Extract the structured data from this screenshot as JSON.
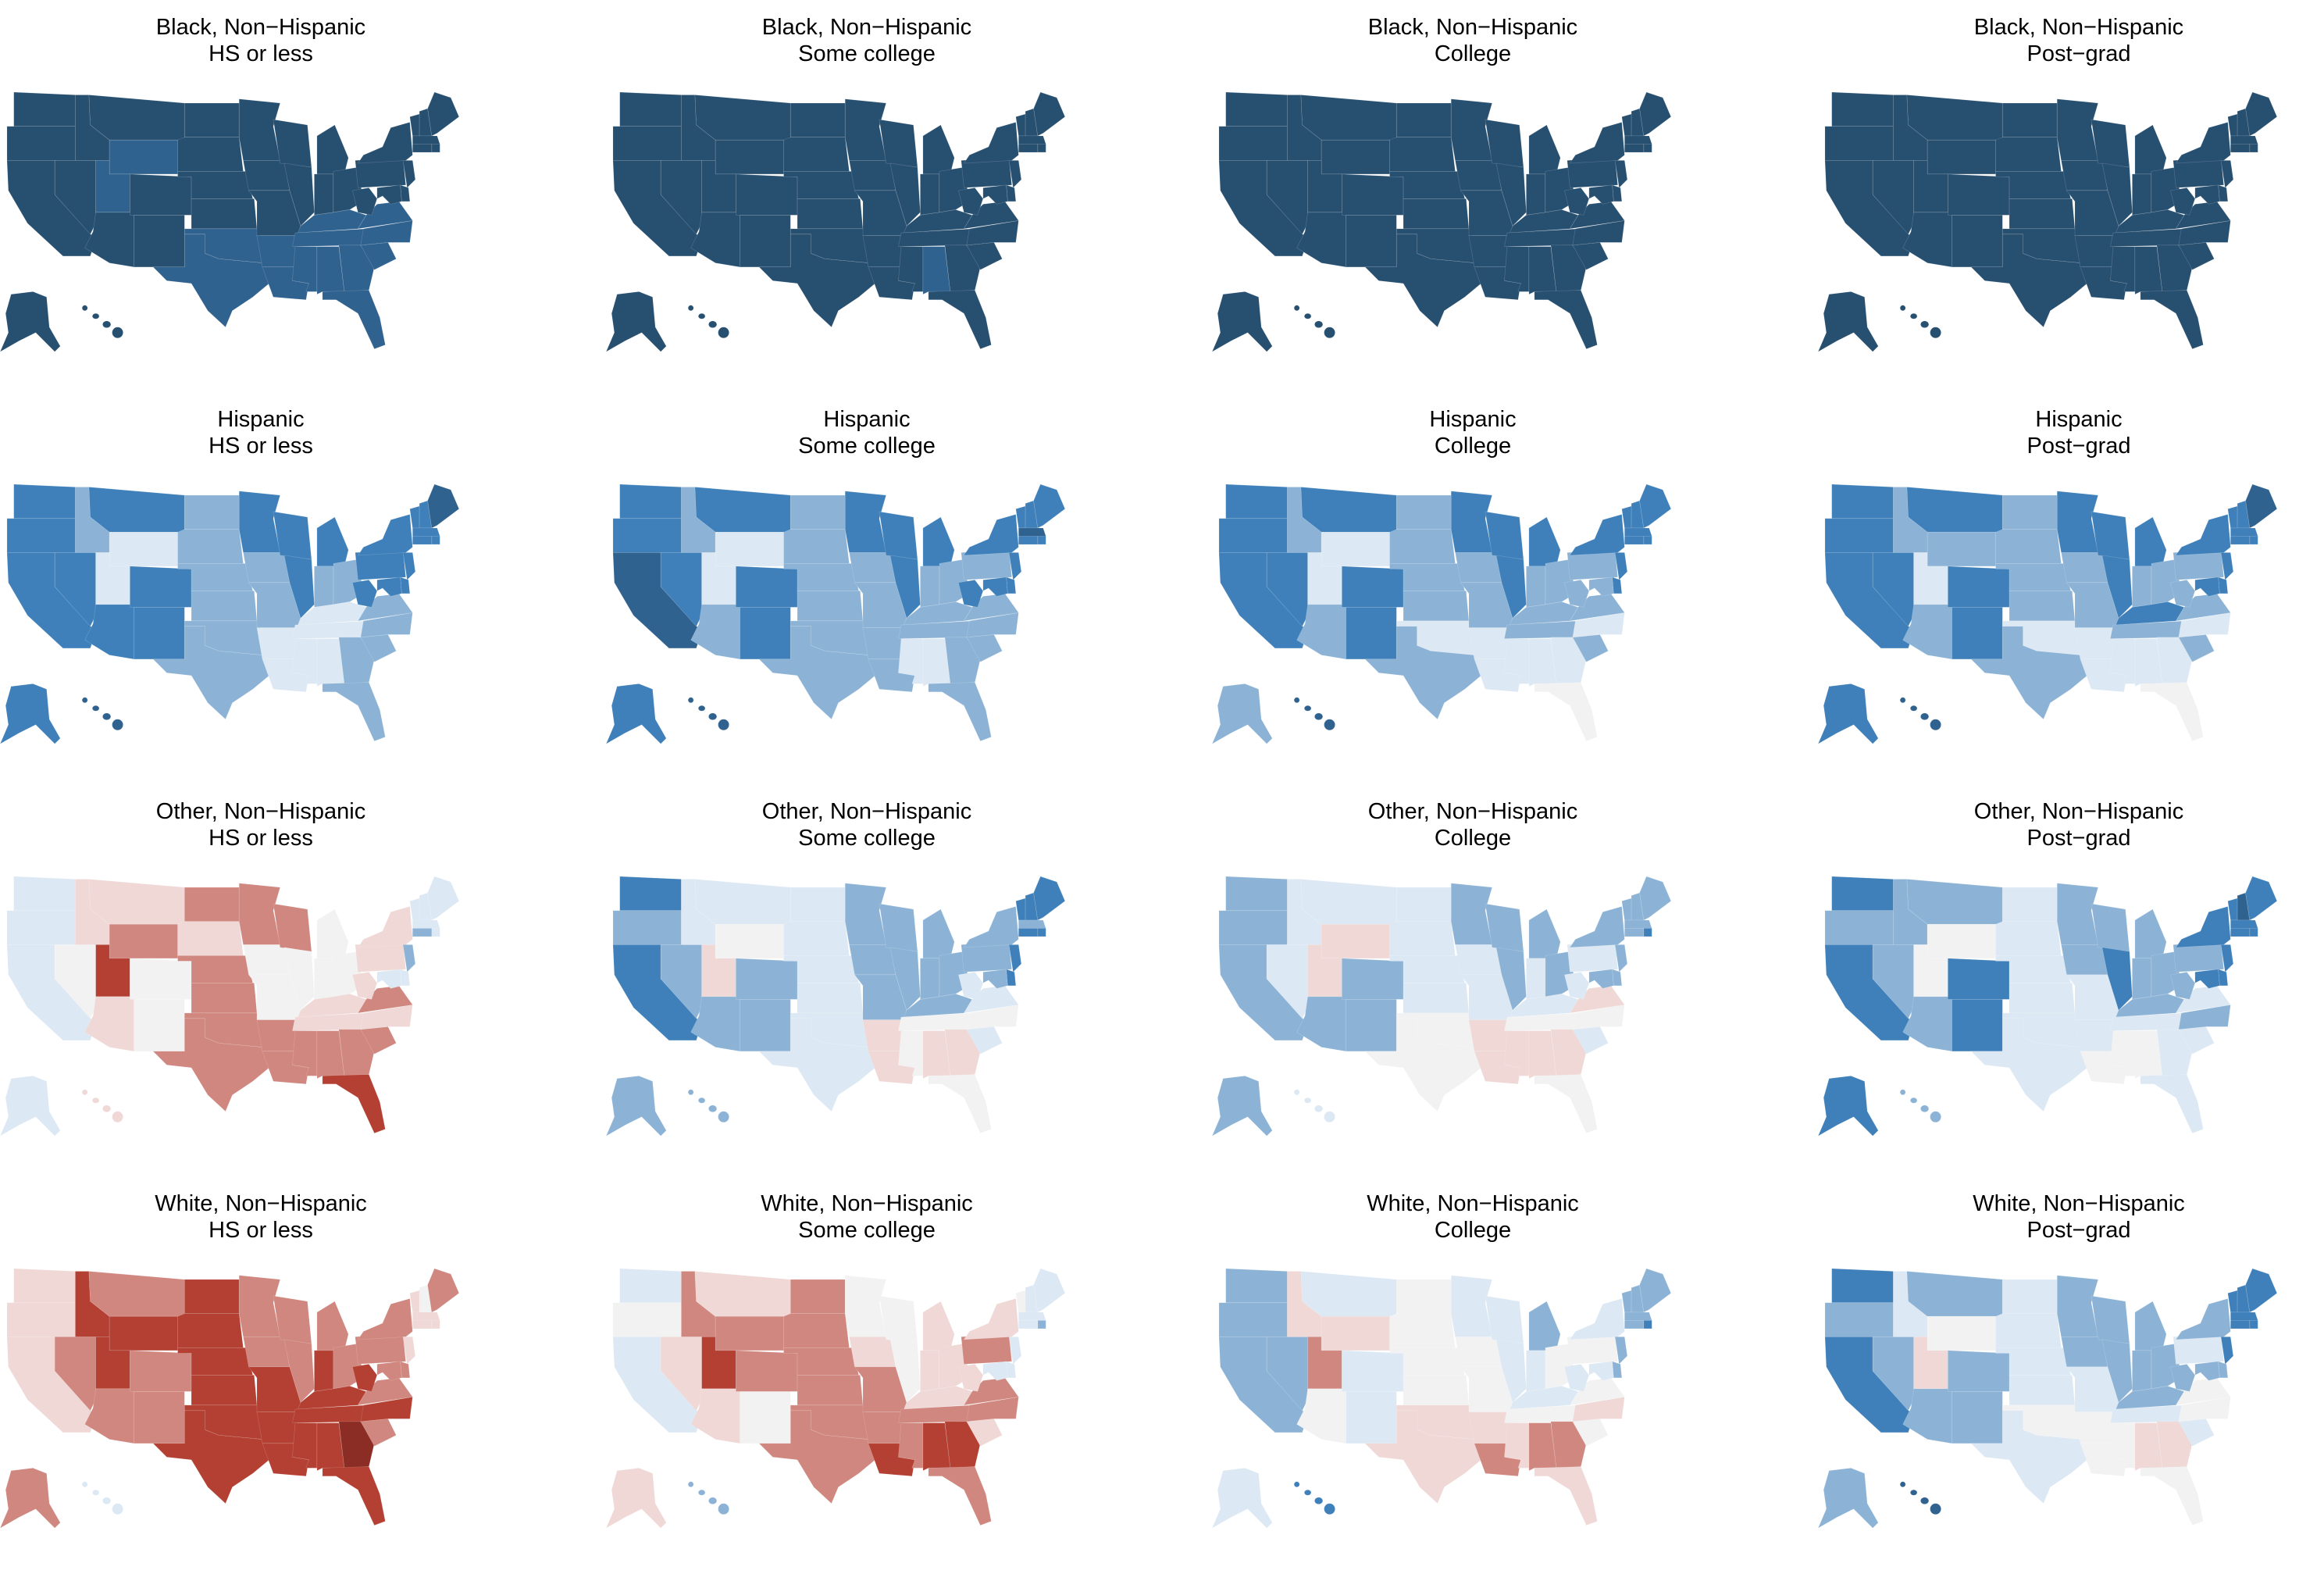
{
  "palette": [
    "#8c2d25",
    "#b34032",
    "#d0877f",
    "#efd8d6",
    "#f2f2f2",
    "#dce8f3",
    "#8cb3d6",
    "#3f80ba",
    "#30628f",
    "#274f70"
  ],
  "state_order": [
    "WA",
    "OR",
    "CA",
    "NV",
    "ID",
    "MT",
    "WY",
    "UT",
    "AZ",
    "NM",
    "CO",
    "ND",
    "SD",
    "NE",
    "KS",
    "OK",
    "TX",
    "MN",
    "IA",
    "MO",
    "AR",
    "LA",
    "WI",
    "IL",
    "MI",
    "IN",
    "OH",
    "KY",
    "TN",
    "MS",
    "AL",
    "GA",
    "FL",
    "SC",
    "NC",
    "VA",
    "WV",
    "PA",
    "NY",
    "VT",
    "NH",
    "ME",
    "MA",
    "RI",
    "CT",
    "NJ",
    "DE",
    "MD",
    "AK",
    "HI"
  ],
  "panels": [
    {
      "group": "Black, Non−Hispanic",
      "education": "HS or less",
      "levels": "99999988999999988999889999988888888899999999999999"
    },
    {
      "group": "Black, Non−Hispanic",
      "education": "Some college",
      "levels": "99999999999999999999999999999989999999999999999999"
    },
    {
      "group": "Black, Non−Hispanic",
      "education": "College",
      "levels": "99999999999999999999999999999999999999999999999999"
    },
    {
      "group": "Black, Non−Hispanic",
      "education": "Post−grad",
      "levels": "99999999999999999999999999999999999999999999999999"
    },
    {
      "group": "Hispanic",
      "education": "HS or less",
      "levels": "77776755777666666766557776655556666677777877777778"
    },
    {
      "group": "Hispanic",
      "education": "Some college",
      "levels": "77876755677666666766667776666556666676777787777778"
    },
    {
      "group": "Hispanic",
      "education": "College",
      "levels": "77776755677666656766557776666555465666777777777668"
    },
    {
      "group": "Hispanic",
      "education": "Post−grad",
      "levels": "77776765677666656766557776676555465666777877777778"
    },
    {
      "group": "Other, Non−Hispanic",
      "education": "HS or less",
      "levels": "55543321344232222244222444433222123233355555665553"
    },
    {
      "group": "Other, Non−Hispanic",
      "education": "Some college",
      "levels": "76765543666555555666336666664433454556677767777666"
    },
    {
      "group": "Other, Non−Hispanic",
      "education": "College",
      "levels": "66655533666555544655336665654333454355666667666665"
    },
    {
      "group": "Other, Non−Hispanic",
      "education": "Post−grad",
      "levels": "76766644677555555665546766665445556566778777777776"
    },
    {
      "group": "White, Non−Hispanic",
      "education": "HS or less",
      "levels": "33321211222111111221112221211110121212234233332225"
    },
    {
      "group": "White, Non−Hispanic",
      "education": "Some college",
      "levels": "54532321342222222432214433332211232232345556555536"
    },
    {
      "group": "White, Non−Hispanic",
      "education": "College",
      "levels": "66663532455444433544325565454322343454566667666557"
    },
    {
      "group": "White, Non−Hispanic",
      "education": "Post−grad",
      "levels": "76765643666555545665446666665433454465677777776668"
    }
  ]
}
